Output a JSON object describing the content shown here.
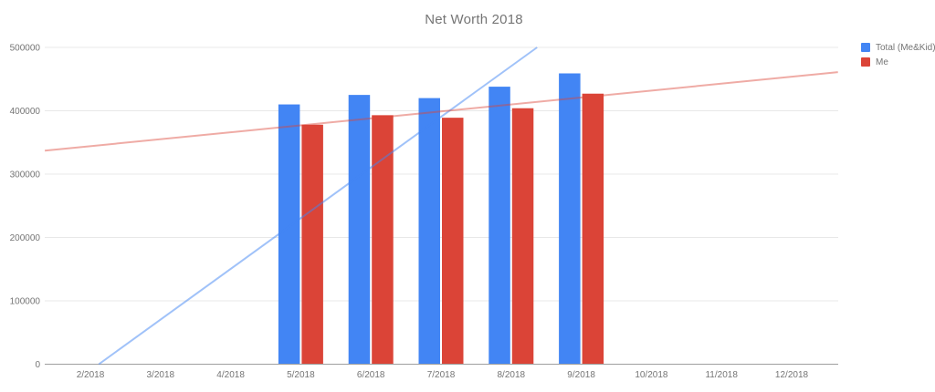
{
  "title": "Net Worth 2018",
  "legend": {
    "items": [
      {
        "label": "Total (Me&Kid)",
        "color": "#4285F4"
      },
      {
        "label": "Me",
        "color": "#DB4437"
      }
    ]
  },
  "chart_data": {
    "type": "bar",
    "title": "Net Worth 2018",
    "xlabel": "",
    "ylabel": "",
    "grid": true,
    "legend_position": "top-right",
    "categories": [
      "2/2018",
      "3/2018",
      "4/2018",
      "5/2018",
      "6/2018",
      "7/2018",
      "8/2018",
      "9/2018",
      "10/2018",
      "11/2018",
      "12/2018"
    ],
    "series": [
      {
        "name": "Total (Me&Kid)",
        "key": "total",
        "color": "#4285F4",
        "values": [
          null,
          null,
          null,
          410000,
          425000,
          420000,
          438000,
          459000,
          null,
          null,
          null
        ]
      },
      {
        "name": "Me",
        "key": "me",
        "color": "#DB4437",
        "values": [
          null,
          null,
          null,
          378000,
          393000,
          389000,
          404000,
          427000,
          null,
          null,
          null
        ]
      }
    ],
    "trendlines": [
      {
        "series": "Total (Me&Kid)",
        "key": "total",
        "color": "rgba(66,133,244,0.5)",
        "points": [
          {
            "x": 0.12,
            "y": 0
          },
          {
            "x": 6.37,
            "y": 500000
          }
        ]
      },
      {
        "series": "Me",
        "key": "me",
        "color": "rgba(219,68,55,0.45)",
        "points": [
          {
            "x": -0.65,
            "y": 337000
          },
          {
            "x": 10.66,
            "y": 461000
          }
        ]
      }
    ],
    "y_axis": {
      "min": 0,
      "max": 500000,
      "step": 100000,
      "ticks": [
        {
          "value": 0,
          "label": "0"
        },
        {
          "value": 100000,
          "label": "100000"
        },
        {
          "value": 200000,
          "label": "200000"
        },
        {
          "value": 300000,
          "label": "300000"
        },
        {
          "value": 400000,
          "label": "400000"
        },
        {
          "value": 500000,
          "label": "500000"
        }
      ]
    },
    "colors": {
      "gridline": "#e8e8e8",
      "axis_line": "#9e9e9e",
      "tick_label": "#757575",
      "title": "#757575"
    }
  }
}
